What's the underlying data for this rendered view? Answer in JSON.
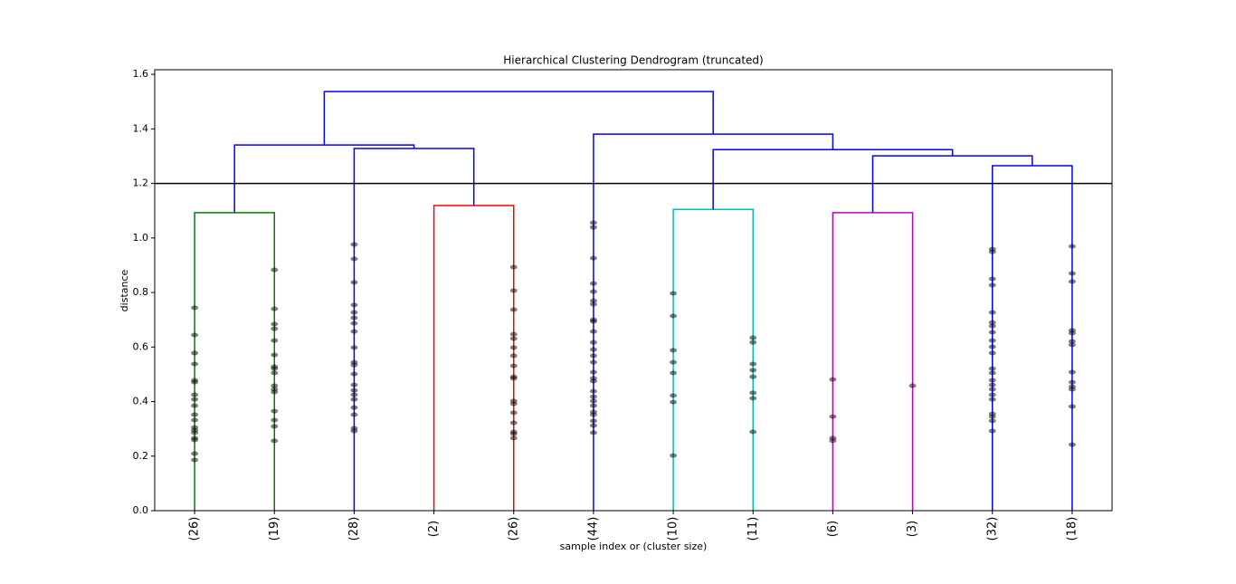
{
  "chart_data": {
    "type": "dendrogram",
    "title": "Hierarchical Clustering Dendrogram (truncated)",
    "xlabel": "sample index or (cluster size)",
    "ylabel": "distance",
    "categories": [
      "(26)",
      "(19)",
      "(28)",
      "(2)",
      "(26)",
      "(44)",
      "(10)",
      "(11)",
      "(6)",
      "(3)",
      "(32)",
      "(18)"
    ],
    "ylim": [
      0,
      1.617
    ],
    "yticks": [
      {
        "value": 0,
        "label": "0.0"
      },
      0.2,
      0.4,
      0.6,
      0.8,
      {
        "value": 1,
        "label": "1.0"
      },
      1.2,
      1.4,
      1.6
    ],
    "merges": [
      {
        "left": 0,
        "right": 1,
        "height": 1.093,
        "color": "#008000"
      },
      {
        "left": 3,
        "right": 4,
        "height": 1.119,
        "color": "#ff0000"
      },
      {
        "left": 6,
        "right": 7,
        "height": 1.105,
        "color": "#00bfbf"
      },
      {
        "left": 8,
        "right": 9,
        "height": 1.093,
        "color": "#bf00bf"
      },
      {
        "left": 10,
        "right": 11,
        "height": 1.265,
        "color": "#0000ff"
      },
      {
        "left": 2,
        "right": 13,
        "height": 1.328,
        "color": "#0000ff"
      },
      {
        "left": 15,
        "right": 16,
        "height": 1.301,
        "color": "#0000ff"
      },
      {
        "left": 14,
        "right": 18,
        "height": 1.324,
        "color": "#0000ff"
      },
      {
        "left": 5,
        "right": 19,
        "height": 1.381,
        "color": "#0000ff"
      },
      {
        "left": 12,
        "right": 17,
        "height": 1.341,
        "color": "#0000ff"
      },
      {
        "left": 21,
        "right": 20,
        "height": 1.537,
        "color": "#0000ff"
      }
    ],
    "points": [
      [
        0.744,
        0.644,
        0.578,
        0.538,
        0.478,
        0.471,
        0.425,
        0.408,
        0.385,
        0.352,
        0.332,
        0.305,
        0.295,
        0.286,
        0.266,
        0.259,
        0.209,
        0.186
      ],
      [
        0.883,
        0.74,
        0.684,
        0.667,
        0.624,
        0.571,
        0.528,
        0.521,
        0.505,
        0.458,
        0.445,
        0.435,
        0.365,
        0.332,
        0.309,
        0.256
      ],
      [
        0.976,
        0.923,
        0.837,
        0.754,
        0.727,
        0.707,
        0.687,
        0.657,
        0.598,
        0.544,
        0.534,
        0.501,
        0.461,
        0.441,
        0.425,
        0.408,
        0.378,
        0.352,
        0.302,
        0.292
      ],
      [],
      [
        0.893,
        0.807,
        0.737,
        0.647,
        0.631,
        0.598,
        0.568,
        0.531,
        0.491,
        0.485,
        0.402,
        0.392,
        0.359,
        0.322,
        0.289,
        0.282,
        0.266
      ],
      [
        1.056,
        1.039,
        0.926,
        0.833,
        0.803,
        0.77,
        0.757,
        0.7,
        0.694,
        0.657,
        0.617,
        0.591,
        0.568,
        0.544,
        0.508,
        0.485,
        0.475,
        0.438,
        0.418,
        0.402,
        0.385,
        0.362,
        0.352,
        0.329,
        0.312,
        0.286
      ],
      [
        0.797,
        0.714,
        0.588,
        0.544,
        0.505,
        0.422,
        0.398,
        0.202
      ],
      [
        0.634,
        0.617,
        0.538,
        0.515,
        0.491,
        0.432,
        0.412,
        0.289
      ],
      [
        0.481,
        0.345,
        0.266,
        0.256
      ],
      [
        0.458
      ],
      [
        0.959,
        0.949,
        0.85,
        0.827,
        0.727,
        0.69,
        0.677,
        0.654,
        0.624,
        0.601,
        0.578,
        0.521,
        0.505,
        0.478,
        0.461,
        0.445,
        0.425,
        0.408,
        0.355,
        0.345,
        0.329,
        0.292
      ],
      [
        0.969,
        0.87,
        0.84,
        0.661,
        0.651,
        0.621,
        0.608,
        0.508,
        0.471,
        0.455,
        0.445,
        0.382,
        0.242
      ]
    ],
    "point_color": "#000000",
    "threshold": 1.2,
    "threshold_color": "#000000"
  }
}
